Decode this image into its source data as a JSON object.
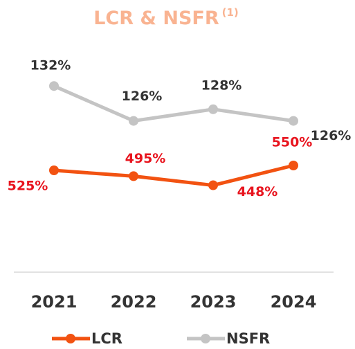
{
  "chart_data": {
    "type": "line",
    "title": "LCR & NSFR",
    "title_note": "(1)",
    "categories": [
      "2021",
      "2022",
      "2023",
      "2024"
    ],
    "series": [
      {
        "name": "LCR",
        "color": "#f25211",
        "label_color": "#e8141e",
        "values": [
          525,
          495,
          448,
          550
        ],
        "value_labels": [
          "525%",
          "495%",
          "448%",
          "550%"
        ]
      },
      {
        "name": "NSFR",
        "color": "#c4c4c4",
        "label_color": "#333333",
        "axis": "y2",
        "values": [
          132,
          126,
          128,
          126
        ],
        "value_labels": [
          "132%",
          "126%",
          "128%",
          "126%"
        ]
      }
    ],
    "ylim": [
      0,
      1200
    ],
    "y2lim": [
      100,
      140
    ],
    "grid": false
  }
}
